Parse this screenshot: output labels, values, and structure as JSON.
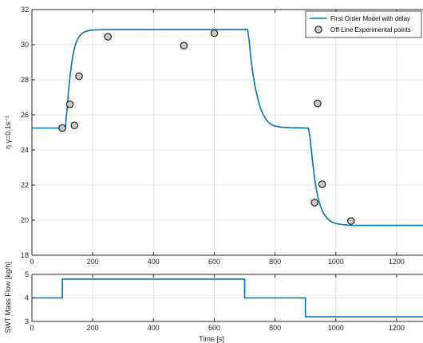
{
  "chart_data": [
    {
      "type": "line",
      "title": "",
      "xlabel": "",
      "ylabel": "η γ=0.1s⁻¹",
      "xlim": [
        0,
        1300
      ],
      "ylim": [
        18,
        32
      ],
      "xticks": [
        0,
        200,
        400,
        600,
        800,
        1000,
        1200
      ],
      "yticks": [
        18,
        20,
        22,
        24,
        26,
        28,
        30,
        32
      ],
      "grid": true,
      "legend": {
        "placement": "top-right",
        "entries": [
          {
            "label": "First Order Model with delay",
            "marker": "line",
            "color": "#0072BD"
          },
          {
            "label": "Off-Line Experimental points",
            "marker": "circle",
            "color": "#000000",
            "fill": "#C8C8C8"
          }
        ]
      },
      "series": [
        {
          "name": "First Order Model with delay",
          "kind": "line",
          "color": "#0072BD",
          "x": [
            0,
            110,
            115,
            120,
            125,
            130,
            135,
            140,
            145,
            150,
            155,
            160,
            165,
            170,
            175,
            180,
            190,
            200,
            220,
            250,
            300,
            400,
            500,
            600,
            710,
            715,
            720,
            725,
            730,
            735,
            740,
            745,
            750,
            755,
            760,
            770,
            780,
            790,
            800,
            820,
            850,
            900,
            910,
            915,
            920,
            925,
            930,
            935,
            940,
            945,
            950,
            955,
            960,
            970,
            980,
            990,
            1000,
            1020,
            1050,
            1100,
            1200,
            1300
          ],
          "y": [
            25.25,
            25.25,
            26.2,
            27.25,
            28.15,
            28.85,
            29.4,
            29.8,
            30.1,
            30.3,
            30.45,
            30.56,
            30.64,
            30.7,
            30.74,
            30.77,
            30.81,
            30.83,
            30.85,
            30.86,
            30.86,
            30.86,
            30.86,
            30.86,
            30.86,
            30.2,
            29.3,
            28.6,
            28.05,
            27.55,
            27.15,
            26.8,
            26.5,
            26.25,
            26.05,
            25.75,
            25.55,
            25.43,
            25.36,
            25.3,
            25.27,
            25.25,
            25.25,
            24.7,
            23.9,
            23.1,
            22.4,
            21.85,
            21.4,
            21.05,
            20.78,
            20.55,
            20.38,
            20.13,
            19.97,
            19.87,
            19.81,
            19.75,
            19.71,
            19.7,
            19.7,
            19.7
          ]
        },
        {
          "name": "Off-Line Experimental points",
          "kind": "scatter",
          "marker": "circle",
          "color": "#000000",
          "fill": "#C8C8C8",
          "x": [
            100,
            125,
            140,
            155,
            250,
            500,
            600,
            930,
            940,
            955,
            1050
          ],
          "y": [
            25.25,
            26.6,
            25.4,
            28.2,
            30.45,
            29.95,
            30.65,
            21.0,
            26.65,
            22.05,
            19.95
          ]
        }
      ]
    },
    {
      "type": "line",
      "title": "",
      "xlabel": "Time [s]",
      "ylabel": "SWT Mass Flow [kg/h]",
      "xlim": [
        0,
        1300
      ],
      "ylim": [
        3,
        5
      ],
      "xticks": [
        0,
        200,
        400,
        600,
        800,
        1000,
        1200
      ],
      "yticks": [
        3,
        4,
        5
      ],
      "grid": true,
      "series": [
        {
          "kind": "step",
          "color": "#0072BD",
          "x": [
            0,
            100,
            100,
            700,
            700,
            900,
            900,
            1300
          ],
          "y": [
            4.0,
            4.0,
            4.8,
            4.8,
            4.0,
            4.0,
            3.2,
            3.2
          ]
        }
      ]
    }
  ]
}
